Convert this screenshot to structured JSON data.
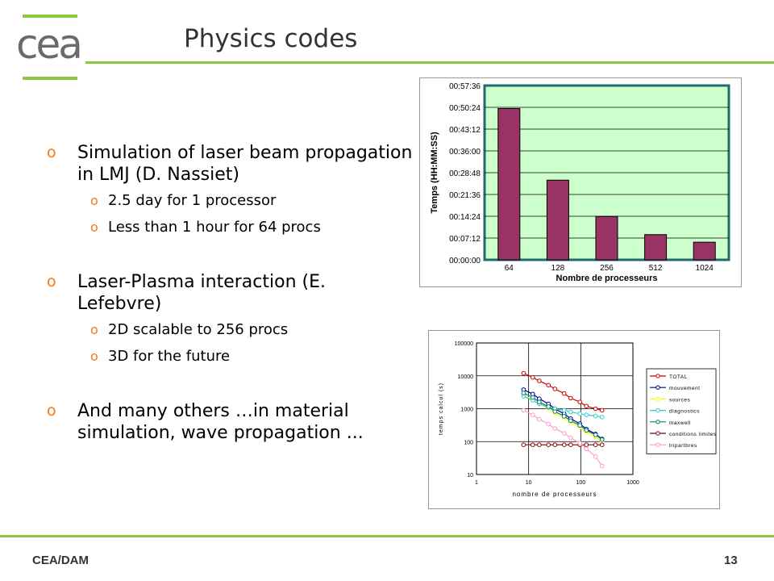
{
  "header": {
    "logo": "cea",
    "title": "Physics codes"
  },
  "bullets": [
    {
      "text": "Simulation of laser beam propagation in LMJ (D. Nassiet)",
      "subs": [
        "2.5 day for 1 processor",
        "Less than 1 hour for 64 procs"
      ]
    },
    {
      "text": "Laser-Plasma interaction (E. Lefebvre)",
      "subs": [
        "2D scalable to 256 procs",
        "3D for the future"
      ]
    },
    {
      "text": "And many others …in material simulation, wave propagation ...",
      "subs": []
    }
  ],
  "bullet_marker": "o",
  "footer": {
    "left": "CEA/DAM",
    "right": "13"
  },
  "colors": {
    "accent_green": "#8dc63f",
    "bullet_orange": "#f47a20",
    "bar_fill": "#993366",
    "plot_bg": "#ccffcc"
  },
  "chart_data": [
    {
      "type": "bar",
      "categories": [
        "64",
        "128",
        "256",
        "512",
        "1024"
      ],
      "values_seconds": [
        3000,
        1580,
        860,
        500,
        350
      ],
      "yticks": [
        "00:00:00",
        "00:07:12",
        "00:14:24",
        "00:21:36",
        "00:28:48",
        "00:36:00",
        "00:43:12",
        "00:50:24",
        "00:57:36"
      ],
      "ylim_seconds": [
        0,
        3456
      ],
      "xlabel": "Nombre de processeurs",
      "ylabel": "Temps (HH:MM:SS)",
      "grid": true
    },
    {
      "type": "line",
      "xscale": "log",
      "yscale": "log",
      "xlim": [
        1,
        1000
      ],
      "ylim": [
        10,
        100000
      ],
      "xticks": [
        "1",
        "10",
        "100",
        "1000"
      ],
      "yticks": [
        "10",
        "100",
        "1000",
        "10000",
        "100000"
      ],
      "xlabel": "nombre de processeurs",
      "ylabel": "temps calcul (s)",
      "legend_position": "right",
      "x": [
        8,
        12,
        16,
        24,
        32,
        48,
        64,
        96,
        128,
        192,
        256
      ],
      "series": [
        {
          "name": "TOTAL",
          "color": "#cc0000",
          "values": [
            12000,
            9000,
            7000,
            5200,
            4000,
            2900,
            2100,
            1600,
            1200,
            1000,
            900
          ]
        },
        {
          "name": "mouvement",
          "color": "#000080",
          "values": [
            3800,
            2800,
            2000,
            1400,
            1000,
            700,
            500,
            350,
            240,
            170,
            120
          ]
        },
        {
          "name": "sources",
          "color": "#ffff00",
          "values": [
            2600,
            1900,
            1400,
            1000,
            720,
            520,
            380,
            270,
            190,
            140,
            100
          ]
        },
        {
          "name": "diagnostics",
          "color": "#33cccc",
          "values": [
            2400,
            1800,
            1400,
            1100,
            1000,
            900,
            800,
            700,
            650,
            600,
            560
          ]
        },
        {
          "name": "maxwell",
          "color": "#008080",
          "values": [
            3000,
            2200,
            1600,
            1150,
            820,
            590,
            430,
            310,
            220,
            160,
            115
          ]
        },
        {
          "name": "conditions limites",
          "color": "#800000",
          "values": [
            80,
            80,
            80,
            80,
            80,
            80,
            80,
            80,
            80,
            80,
            80
          ]
        },
        {
          "name": "tripartbres",
          "color": "#ff99cc",
          "values": [
            900,
            650,
            480,
            340,
            250,
            180,
            130,
            90,
            60,
            35,
            18
          ]
        }
      ]
    }
  ]
}
